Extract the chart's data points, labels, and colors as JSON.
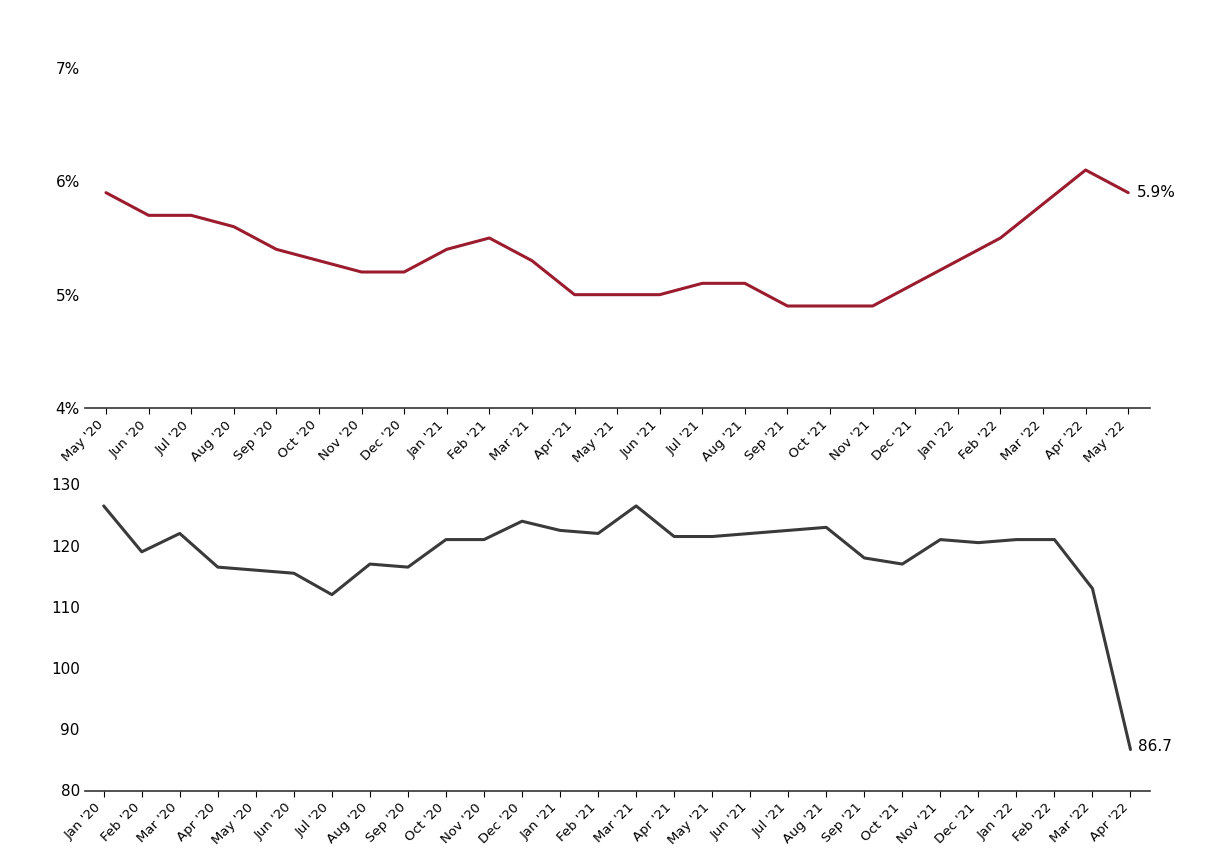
{
  "unemployment_labels": [
    "May '20",
    "Jun '20",
    "Jul '20",
    "Aug '20",
    "Sep '20",
    "Oct '20",
    "Nov '20",
    "Dec '20",
    "Jan '21",
    "Feb '21",
    "Mar '21",
    "Apr '21",
    "May '21",
    "Jun '21",
    "Jul '21",
    "Aug '21",
    "Sep '21",
    "Oct '21",
    "Nov '21",
    "Dec '21",
    "Jan '22",
    "Feb '22",
    "Mar '22",
    "Apr '22",
    "May '22"
  ],
  "unemployment_values": [
    5.9,
    5.7,
    5.7,
    5.6,
    5.4,
    5.3,
    5.2,
    5.2,
    5.4,
    5.5,
    5.3,
    5.0,
    5.0,
    5.0,
    5.1,
    5.1,
    4.9,
    4.9,
    4.9,
    5.1,
    5.3,
    5.5,
    5.8,
    6.1,
    5.9
  ],
  "unemployment_color": "#9b1c2e",
  "unemployment_annotation": "5.9%",
  "unemployment_ylim": [
    0.04,
    0.07
  ],
  "unemployment_yticks": [
    0.04,
    0.05,
    0.06,
    0.07
  ],
  "unemployment_ytick_labels": [
    "4%",
    "5%",
    "6%",
    "7%"
  ],
  "cci_labels": [
    "Jan '20",
    "Feb '20",
    "Mar '20",
    "Apr '20",
    "May '20",
    "Jun '20",
    "Jul '20",
    "Aug '20",
    "Sep '20",
    "Oct '20",
    "Nov '20",
    "Dec '20",
    "Jan '21",
    "Feb '21",
    "Mar '21",
    "Apr '21",
    "May '21",
    "Jun '21",
    "Jul '21",
    "Aug '21",
    "Sep '21",
    "Oct '21",
    "Nov '21",
    "Dec '21",
    "Jan '22",
    "Feb '22",
    "Mar '22",
    "Apr '22"
  ],
  "cci_values": [
    126.5,
    119.0,
    122.0,
    116.5,
    116.0,
    115.5,
    112.0,
    117.0,
    116.5,
    121.0,
    121.0,
    124.0,
    122.5,
    122.0,
    126.5,
    121.5,
    121.5,
    122.0,
    122.5,
    123.0,
    118.0,
    117.0,
    121.0,
    120.5,
    121.0,
    121.0,
    113.0,
    86.7
  ],
  "cci_color": "#3a3a3a",
  "cci_annotation": "86.7",
  "cci_ylim": [
    80,
    130
  ],
  "cci_yticks": [
    80,
    90,
    100,
    110,
    120,
    130
  ],
  "line_width": 2.2,
  "background_color": "#ffffff",
  "legend_line_color_unemp": "#9b1c2e",
  "legend_line_color_cci": "#3a3a3a"
}
